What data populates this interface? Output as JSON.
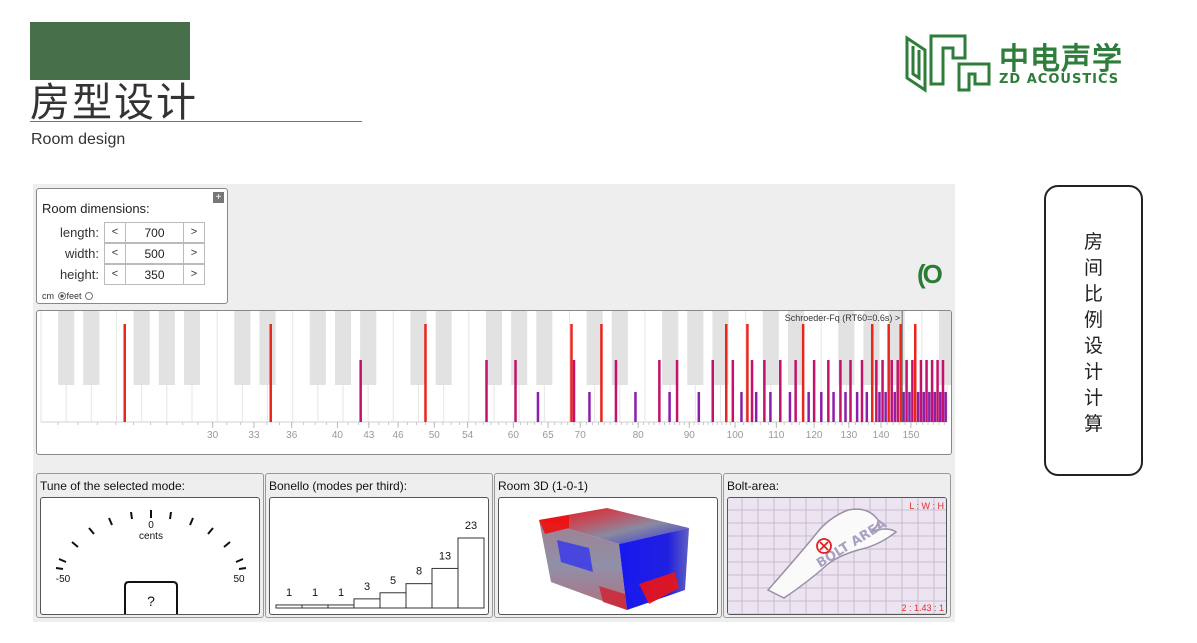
{
  "header": {
    "title_cn": "房型设计",
    "title_en": "Room design"
  },
  "logo": {
    "name_cn": "中电声学",
    "name_en": "ZD ACOUSTICS",
    "color": "#2e7d3a"
  },
  "side_box": {
    "text": "房\n间\n比\n例\n设\n计\n计\n算"
  },
  "room_dimensions": {
    "title": "Room dimensions:",
    "expand_icon": "+",
    "decrement_label": "<",
    "increment_label": ">",
    "fields": [
      {
        "label": "length:",
        "value": "700"
      },
      {
        "label": "width:",
        "value": "500"
      },
      {
        "label": "height:",
        "value": "350"
      }
    ],
    "unit_cm": "cm",
    "unit_feet": "feet",
    "selected_unit": "cm"
  },
  "spinner_text": "(O",
  "mode_plot": {
    "schroeder_label": "Schroeder-Fq (RT60=0.6s) >",
    "schroeder_freq": 147,
    "ticks": [
      "30",
      "33",
      "36",
      "40",
      "43",
      "46",
      "50",
      "54",
      "60",
      "65",
      "70",
      "80",
      "90",
      "100",
      "110",
      "120",
      "130",
      "140",
      "150"
    ],
    "colors": {
      "axial": "#e8261b",
      "tangential": "#c2126b",
      "oblique": "#8b1fa9"
    },
    "modes": [
      {
        "f": 24.5,
        "type": "axial"
      },
      {
        "f": 34.3,
        "type": "axial"
      },
      {
        "f": 49.0,
        "type": "axial"
      },
      {
        "f": 42.2,
        "type": "tangential"
      },
      {
        "f": 56.4,
        "type": "tangential"
      },
      {
        "f": 60.3,
        "type": "tangential"
      },
      {
        "f": 63.5,
        "type": "oblique"
      },
      {
        "f": 68.6,
        "type": "axial"
      },
      {
        "f": 69.0,
        "type": "tangential"
      },
      {
        "f": 71.5,
        "type": "oblique"
      },
      {
        "f": 73.5,
        "type": "axial"
      },
      {
        "f": 76.0,
        "type": "tangential"
      },
      {
        "f": 79.5,
        "type": "oblique"
      },
      {
        "f": 84.0,
        "type": "tangential"
      },
      {
        "f": 86.0,
        "type": "oblique"
      },
      {
        "f": 87.5,
        "type": "tangential"
      },
      {
        "f": 92.0,
        "type": "oblique"
      },
      {
        "f": 95.0,
        "type": "tangential"
      },
      {
        "f": 98.0,
        "type": "axial"
      },
      {
        "f": 99.5,
        "type": "tangential"
      },
      {
        "f": 101.5,
        "type": "oblique"
      },
      {
        "f": 102.9,
        "type": "axial"
      },
      {
        "f": 104.0,
        "type": "tangential"
      },
      {
        "f": 105.0,
        "type": "oblique"
      },
      {
        "f": 107.0,
        "type": "tangential"
      },
      {
        "f": 108.5,
        "type": "oblique"
      },
      {
        "f": 111.0,
        "type": "tangential"
      },
      {
        "f": 113.5,
        "type": "oblique"
      },
      {
        "f": 115.0,
        "type": "tangential"
      },
      {
        "f": 117.0,
        "type": "axial"
      },
      {
        "f": 118.5,
        "type": "oblique"
      },
      {
        "f": 120.0,
        "type": "tangential"
      },
      {
        "f": 122.0,
        "type": "oblique"
      },
      {
        "f": 124.0,
        "type": "tangential"
      },
      {
        "f": 125.5,
        "type": "oblique"
      },
      {
        "f": 127.5,
        "type": "tangential"
      },
      {
        "f": 129.0,
        "type": "oblique"
      },
      {
        "f": 130.5,
        "type": "tangential"
      },
      {
        "f": 132.5,
        "type": "oblique"
      },
      {
        "f": 134.0,
        "type": "tangential"
      },
      {
        "f": 135.5,
        "type": "oblique"
      },
      {
        "f": 137.2,
        "type": "axial"
      },
      {
        "f": 138.5,
        "type": "tangential"
      },
      {
        "f": 139.5,
        "type": "oblique"
      },
      {
        "f": 140.5,
        "type": "tangential"
      },
      {
        "f": 141.5,
        "type": "oblique"
      },
      {
        "f": 142.5,
        "type": "axial"
      },
      {
        "f": 143.5,
        "type": "tangential"
      },
      {
        "f": 144.5,
        "type": "oblique"
      },
      {
        "f": 145.5,
        "type": "tangential"
      },
      {
        "f": 146.5,
        "type": "axial"
      },
      {
        "f": 147.5,
        "type": "oblique"
      },
      {
        "f": 148.5,
        "type": "tangential"
      },
      {
        "f": 149.5,
        "type": "oblique"
      },
      {
        "f": 150.5,
        "type": "tangential"
      },
      {
        "f": 151.5,
        "type": "axial"
      },
      {
        "f": 152.5,
        "type": "oblique"
      },
      {
        "f": 153.5,
        "type": "tangential"
      },
      {
        "f": 154.5,
        "type": "oblique"
      },
      {
        "f": 155.5,
        "type": "tangential"
      },
      {
        "f": 156.5,
        "type": "oblique"
      },
      {
        "f": 157.5,
        "type": "tangential"
      },
      {
        "f": 158.5,
        "type": "oblique"
      },
      {
        "f": 159.5,
        "type": "tangential"
      },
      {
        "f": 160.5,
        "type": "oblique"
      },
      {
        "f": 161.5,
        "type": "tangential"
      },
      {
        "f": 162.5,
        "type": "oblique"
      }
    ]
  },
  "panels": {
    "tune": {
      "title": "Tune of the selected mode:",
      "center_value": "0",
      "center_unit": "cents",
      "min_label": "-50",
      "max_label": "50",
      "readout": "?"
    },
    "bonello": {
      "title": "Bonello (modes per third):",
      "values": [
        1,
        1,
        1,
        3,
        5,
        8,
        13,
        23
      ],
      "labels": [
        "1",
        "1",
        "1",
        "3",
        "5",
        "8",
        "13",
        "23"
      ]
    },
    "room3d": {
      "title": "Room 3D (1-0-1)"
    },
    "bolt": {
      "title": "Bolt-area:",
      "ratio_label": "L : W : H",
      "ratio_value": "2 : 1.43 : 1",
      "area_label": "BOLT AREA"
    }
  }
}
